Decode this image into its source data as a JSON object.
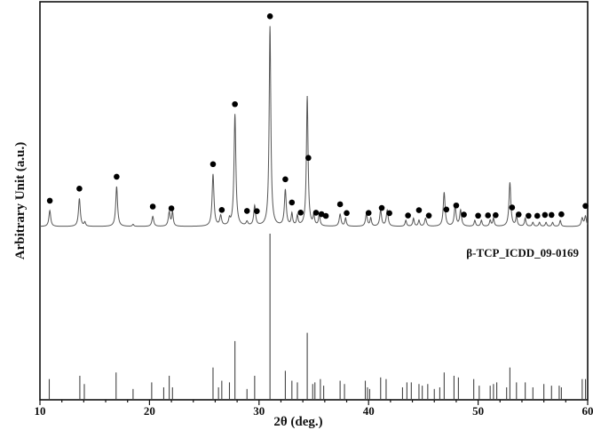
{
  "chart_data": {
    "type": "line",
    "title": "",
    "xlabel": "2θ (deg.)",
    "ylabel": "Arbitrary Unit (a.u.)",
    "xlim": [
      10,
      60
    ],
    "xticks": [
      10,
      20,
      30,
      40,
      50,
      60
    ],
    "y_tick_labels": "none",
    "grid": false,
    "legend": "none",
    "series": [
      {
        "role": "measured",
        "baseline": 0,
        "ylim": [
          0,
          100
        ],
        "peaks": [
          [
            10.9,
            8,
            0.1
          ],
          [
            13.6,
            14,
            0.1
          ],
          [
            14.1,
            2,
            0.08
          ],
          [
            17.0,
            20,
            0.1
          ],
          [
            18.5,
            1,
            0.08
          ],
          [
            20.3,
            5,
            0.1
          ],
          [
            21.8,
            7,
            0.1
          ],
          [
            22.1,
            7,
            0.08
          ],
          [
            25.8,
            26,
            0.1
          ],
          [
            26.5,
            5,
            0.1
          ],
          [
            27.3,
            3,
            0.08
          ],
          [
            27.8,
            56,
            0.1
          ],
          [
            28.9,
            2,
            0.1
          ],
          [
            29.6,
            10,
            0.1
          ],
          [
            31.0,
            100,
            0.09
          ],
          [
            32.4,
            18,
            0.1
          ],
          [
            33.0,
            6,
            0.08
          ],
          [
            33.5,
            5,
            0.08
          ],
          [
            34.4,
            65,
            0.09
          ],
          [
            35.0,
            5,
            0.08
          ],
          [
            35.5,
            6,
            0.08
          ],
          [
            37.4,
            6,
            0.1
          ],
          [
            37.9,
            4,
            0.08
          ],
          [
            39.8,
            6,
            0.1
          ],
          [
            40.2,
            4,
            0.08
          ],
          [
            41.1,
            8,
            0.1
          ],
          [
            41.7,
            8,
            0.1
          ],
          [
            43.4,
            3,
            0.08
          ],
          [
            44.1,
            4,
            0.08
          ],
          [
            44.6,
            3,
            0.08
          ],
          [
            45.2,
            4,
            0.1
          ],
          [
            46.9,
            17,
            0.1
          ],
          [
            47.9,
            10,
            0.1
          ],
          [
            48.4,
            8,
            0.1
          ],
          [
            49.7,
            3,
            0.08
          ],
          [
            50.3,
            3,
            0.08
          ],
          [
            51.1,
            3,
            0.08
          ],
          [
            51.4,
            4,
            0.08
          ],
          [
            52.9,
            22,
            0.1
          ],
          [
            53.5,
            5,
            0.08
          ],
          [
            54.3,
            4,
            0.08
          ],
          [
            55.0,
            2,
            0.08
          ],
          [
            55.6,
            2,
            0.08
          ],
          [
            56.2,
            2,
            0.08
          ],
          [
            56.8,
            2,
            0.08
          ],
          [
            57.5,
            3,
            0.08
          ],
          [
            59.5,
            4,
            0.1
          ],
          [
            59.8,
            5,
            0.1
          ]
        ],
        "marked_peak_positions": [
          10.9,
          13.6,
          17.0,
          20.3,
          22.0,
          25.8,
          26.6,
          27.8,
          28.9,
          29.8,
          31.0,
          32.4,
          33.0,
          33.8,
          34.5,
          35.2,
          35.7,
          36.1,
          37.4,
          38.0,
          40.0,
          41.2,
          41.9,
          43.6,
          44.6,
          45.5,
          47.1,
          48.0,
          48.7,
          50.0,
          50.9,
          51.6,
          53.1,
          53.7,
          54.6,
          55.4,
          56.1,
          56.7,
          57.6,
          59.8
        ]
      },
      {
        "name": "β-TCP_ICDD_09-0169",
        "role": "reference",
        "type": "stick",
        "ylim": [
          0,
          100
        ],
        "x": [
          10.85,
          13.64,
          14.05,
          16.95,
          18.5,
          20.2,
          21.3,
          21.8,
          22.1,
          25.8,
          26.3,
          26.6,
          27.3,
          27.8,
          28.9,
          29.6,
          31.0,
          32.4,
          33.0,
          33.5,
          34.4,
          34.9,
          35.1,
          35.6,
          35.9,
          37.4,
          37.8,
          39.7,
          39.9,
          40.1,
          41.1,
          41.6,
          43.1,
          43.5,
          43.9,
          44.6,
          44.9,
          45.4,
          46.0,
          46.5,
          46.9,
          47.8,
          48.2,
          49.6,
          50.1,
          51.1,
          51.4,
          51.7,
          52.6,
          52.9,
          53.5,
          54.3,
          55.0,
          56.0,
          56.7,
          57.4,
          57.6,
          59.5,
          59.8
        ],
        "values": [
          12,
          14,
          9,
          16,
          6,
          10,
          7,
          14,
          7,
          19,
          7,
          11,
          10,
          35,
          6,
          14,
          100,
          17,
          11,
          10,
          40,
          9,
          10,
          12,
          8,
          11,
          9,
          11,
          7,
          6,
          13,
          12,
          7,
          10,
          10,
          9,
          8,
          9,
          6,
          7,
          16,
          14,
          13,
          12,
          8,
          8,
          9,
          10,
          7,
          19,
          10,
          10,
          7,
          9,
          8,
          8,
          7,
          12,
          12
        ]
      }
    ],
    "annotations": {
      "reference_label": "β-TCP_ICDD_09-0169",
      "marker_symbol": "filled circle"
    }
  }
}
